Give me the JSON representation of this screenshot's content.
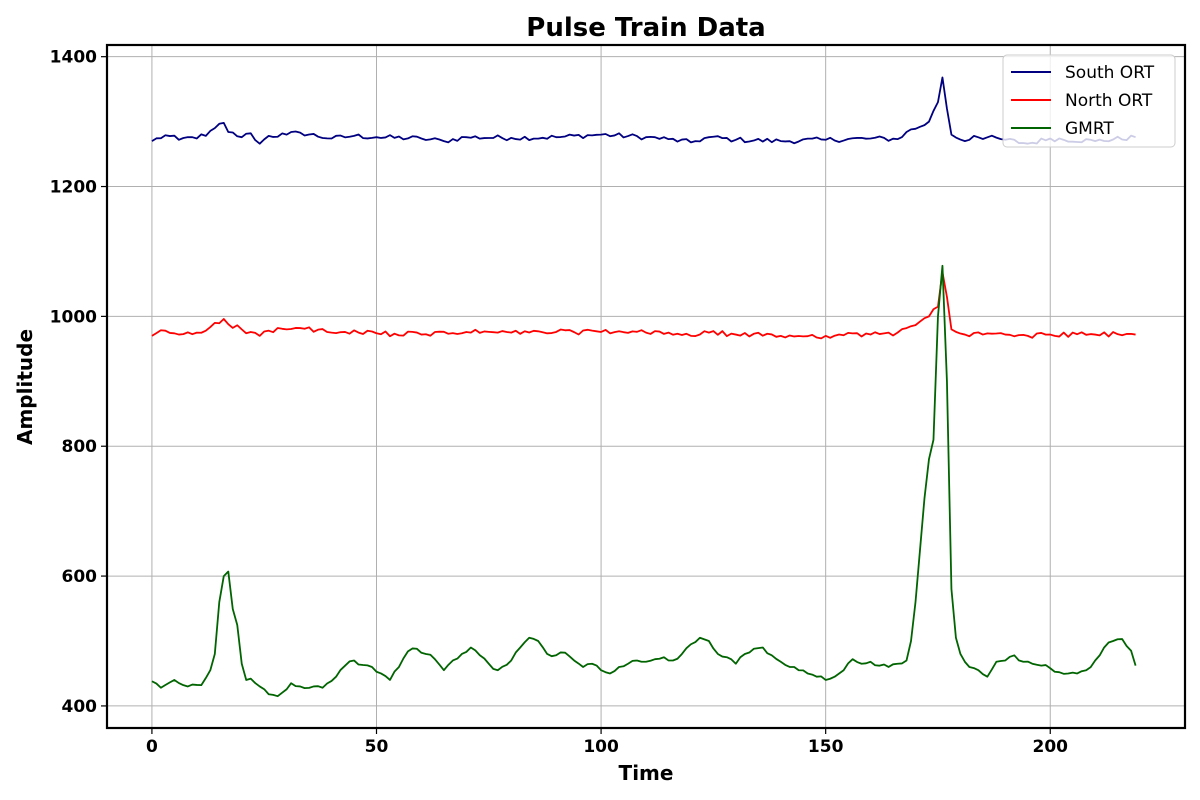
{
  "chart_data": {
    "type": "line",
    "title": "Pulse Train Data",
    "xlabel": "Time",
    "ylabel": "Amplitude",
    "xlim": [
      -10,
      230
    ],
    "ylim": [
      366,
      1418
    ],
    "xticks": [
      0,
      50,
      100,
      150,
      200
    ],
    "yticks": [
      400,
      600,
      800,
      1000,
      1200,
      1400
    ],
    "grid": true,
    "legend_position": "top-right",
    "series": [
      {
        "name": "South ORT",
        "color": "#000080",
        "anchors": [
          [
            0,
            1270
          ],
          [
            3,
            1279
          ],
          [
            6,
            1272
          ],
          [
            9,
            1276
          ],
          [
            12,
            1278
          ],
          [
            14,
            1290
          ],
          [
            16,
            1298
          ],
          [
            17,
            1284
          ],
          [
            20,
            1276
          ],
          [
            22,
            1282
          ],
          [
            24,
            1266
          ],
          [
            26,
            1278
          ],
          [
            30,
            1280
          ],
          [
            33,
            1283
          ],
          [
            40,
            1274
          ],
          [
            45,
            1278
          ],
          [
            50,
            1276
          ],
          [
            60,
            1274
          ],
          [
            65,
            1270
          ],
          [
            70,
            1276
          ],
          [
            80,
            1275
          ],
          [
            90,
            1276
          ],
          [
            100,
            1280
          ],
          [
            110,
            1276
          ],
          [
            115,
            1273
          ],
          [
            120,
            1268
          ],
          [
            124,
            1276
          ],
          [
            130,
            1272
          ],
          [
            140,
            1270
          ],
          [
            150,
            1272
          ],
          [
            160,
            1274
          ],
          [
            166,
            1273
          ],
          [
            168,
            1284
          ],
          [
            171,
            1292
          ],
          [
            173,
            1300
          ],
          [
            175,
            1330
          ],
          [
            176,
            1368
          ],
          [
            177,
            1320
          ],
          [
            178,
            1280
          ],
          [
            181,
            1270
          ],
          [
            183,
            1278
          ],
          [
            190,
            1272
          ],
          [
            195,
            1266
          ],
          [
            200,
            1274
          ],
          [
            210,
            1270
          ],
          [
            219,
            1276
          ]
        ],
        "noise": 4
      },
      {
        "name": "North ORT",
        "color": "#ff0000",
        "anchors": [
          [
            0,
            970
          ],
          [
            3,
            978
          ],
          [
            6,
            972
          ],
          [
            10,
            975
          ],
          [
            12,
            978
          ],
          [
            14,
            990
          ],
          [
            16,
            996
          ],
          [
            17,
            988
          ],
          [
            20,
            980
          ],
          [
            22,
            976
          ],
          [
            24,
            970
          ],
          [
            26,
            978
          ],
          [
            30,
            980
          ],
          [
            33,
            982
          ],
          [
            40,
            975
          ],
          [
            50,
            974
          ],
          [
            60,
            972
          ],
          [
            70,
            976
          ],
          [
            80,
            975
          ],
          [
            90,
            976
          ],
          [
            100,
            976
          ],
          [
            110,
            975
          ],
          [
            115,
            975
          ],
          [
            120,
            970
          ],
          [
            124,
            975
          ],
          [
            130,
            972
          ],
          [
            140,
            970
          ],
          [
            150,
            970
          ],
          [
            160,
            972
          ],
          [
            166,
            975
          ],
          [
            168,
            982
          ],
          [
            171,
            992
          ],
          [
            173,
            1000
          ],
          [
            175,
            1015
          ],
          [
            176,
            1068
          ],
          [
            177,
            1030
          ],
          [
            178,
            980
          ],
          [
            181,
            972
          ],
          [
            185,
            972
          ],
          [
            190,
            972
          ],
          [
            195,
            970
          ],
          [
            200,
            972
          ],
          [
            210,
            972
          ],
          [
            219,
            972
          ]
        ],
        "noise": 4
      },
      {
        "name": "GMRT",
        "color": "#006400",
        "anchors": [
          [
            0,
            438
          ],
          [
            2,
            428
          ],
          [
            5,
            440
          ],
          [
            8,
            430
          ],
          [
            11,
            432
          ],
          [
            13,
            455
          ],
          [
            14,
            480
          ],
          [
            15,
            560
          ],
          [
            16,
            600
          ],
          [
            17,
            607
          ],
          [
            17.6,
            545
          ],
          [
            18.5,
            555
          ],
          [
            20,
            465
          ],
          [
            21,
            440
          ],
          [
            22,
            442
          ],
          [
            24,
            430
          ],
          [
            26,
            418
          ],
          [
            27,
            417
          ],
          [
            28,
            415
          ],
          [
            31,
            435
          ],
          [
            33,
            430
          ],
          [
            36,
            430
          ],
          [
            38,
            428
          ],
          [
            41,
            445
          ],
          [
            43,
            462
          ],
          [
            45,
            470
          ],
          [
            47,
            463
          ],
          [
            49,
            460
          ],
          [
            51,
            450
          ],
          [
            53,
            440
          ],
          [
            55,
            460
          ],
          [
            57,
            484
          ],
          [
            59,
            488
          ],
          [
            61,
            480
          ],
          [
            63,
            472
          ],
          [
            65,
            455
          ],
          [
            67,
            470
          ],
          [
            69,
            480
          ],
          [
            71,
            490
          ],
          [
            73,
            478
          ],
          [
            75,
            465
          ],
          [
            77,
            455
          ],
          [
            80,
            470
          ],
          [
            82,
            490
          ],
          [
            84,
            505
          ],
          [
            86,
            500
          ],
          [
            88,
            480
          ],
          [
            90,
            478
          ],
          [
            92,
            482
          ],
          [
            94,
            470
          ],
          [
            96,
            460
          ],
          [
            98,
            465
          ],
          [
            100,
            455
          ],
          [
            102,
            450
          ],
          [
            104,
            460
          ],
          [
            106,
            465
          ],
          [
            108,
            470
          ],
          [
            110,
            468
          ],
          [
            112,
            472
          ],
          [
            114,
            475
          ],
          [
            116,
            470
          ],
          [
            118,
            480
          ],
          [
            120,
            495
          ],
          [
            122,
            505
          ],
          [
            124,
            500
          ],
          [
            126,
            480
          ],
          [
            128,
            475
          ],
          [
            130,
            465
          ],
          [
            132,
            480
          ],
          [
            134,
            488
          ],
          [
            136,
            490
          ],
          [
            138,
            478
          ],
          [
            140,
            468
          ],
          [
            142,
            460
          ],
          [
            144,
            455
          ],
          [
            146,
            450
          ],
          [
            148,
            445
          ],
          [
            150,
            440
          ],
          [
            152,
            445
          ],
          [
            154,
            455
          ],
          [
            156,
            472
          ],
          [
            158,
            465
          ],
          [
            160,
            468
          ],
          [
            162,
            462
          ],
          [
            164,
            460
          ],
          [
            166,
            465
          ],
          [
            168,
            470
          ],
          [
            169,
            500
          ],
          [
            170,
            560
          ],
          [
            171,
            640
          ],
          [
            172,
            720
          ],
          [
            173,
            780
          ],
          [
            174,
            810
          ],
          [
            175,
            1000
          ],
          [
            176,
            1078
          ],
          [
            177,
            900
          ],
          [
            178,
            580
          ],
          [
            179,
            505
          ],
          [
            180,
            480
          ],
          [
            182,
            460
          ],
          [
            184,
            455
          ],
          [
            186,
            445
          ],
          [
            188,
            468
          ],
          [
            190,
            470
          ],
          [
            192,
            478
          ],
          [
            194,
            468
          ],
          [
            196,
            465
          ],
          [
            198,
            462
          ],
          [
            200,
            458
          ],
          [
            202,
            452
          ],
          [
            204,
            450
          ],
          [
            206,
            450
          ],
          [
            208,
            455
          ],
          [
            210,
            470
          ],
          [
            212,
            490
          ],
          [
            214,
            500
          ],
          [
            216,
            503
          ],
          [
            218,
            485
          ],
          [
            219,
            462
          ]
        ],
        "noise": 3
      }
    ],
    "x_range": [
      0,
      219
    ]
  }
}
